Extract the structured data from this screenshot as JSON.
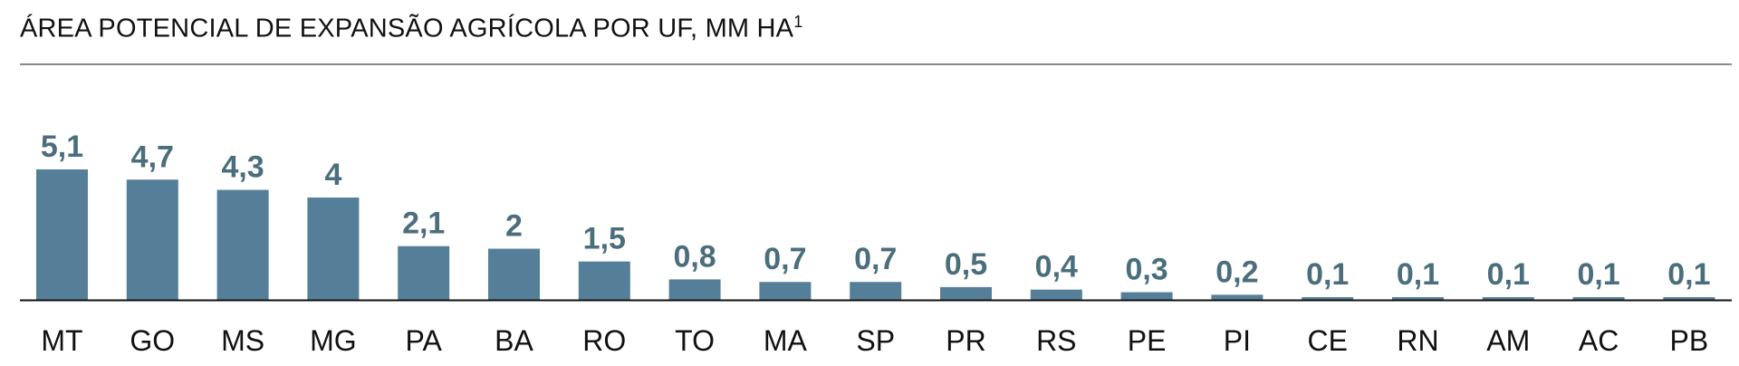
{
  "chart_data": {
    "type": "bar",
    "title": "ÁREA POTENCIAL DE EXPANSÃO AGRÍCOLA POR UF, MM HA",
    "title_footnote": "1",
    "categories": [
      "MT",
      "GO",
      "MS",
      "MG",
      "PA",
      "BA",
      "RO",
      "TO",
      "MA",
      "SP",
      "PR",
      "RS",
      "PE",
      "PI",
      "CE",
      "RN",
      "AM",
      "AC",
      "PB"
    ],
    "values": [
      5.1,
      4.7,
      4.3,
      4.0,
      2.1,
      2.0,
      1.5,
      0.8,
      0.7,
      0.7,
      0.5,
      0.4,
      0.3,
      0.2,
      0.1,
      0.1,
      0.1,
      0.1,
      0.1
    ],
    "data_labels": [
      "5,1",
      "4,7",
      "4,3",
      "4",
      "2,1",
      "2",
      "1,5",
      "0,8",
      "0,7",
      "0,7",
      "0,5",
      "0,4",
      "0,3",
      "0,2",
      "0,1",
      "0,1",
      "0,1",
      "0,1",
      "0,1"
    ],
    "xlabel": "",
    "ylabel": "",
    "ylim": [
      0,
      5.1
    ],
    "grid": false,
    "colors": {
      "bar": "#557f98",
      "label": "#4a6e7c",
      "axis": "#111111",
      "rule": "#8a8a8a"
    }
  }
}
